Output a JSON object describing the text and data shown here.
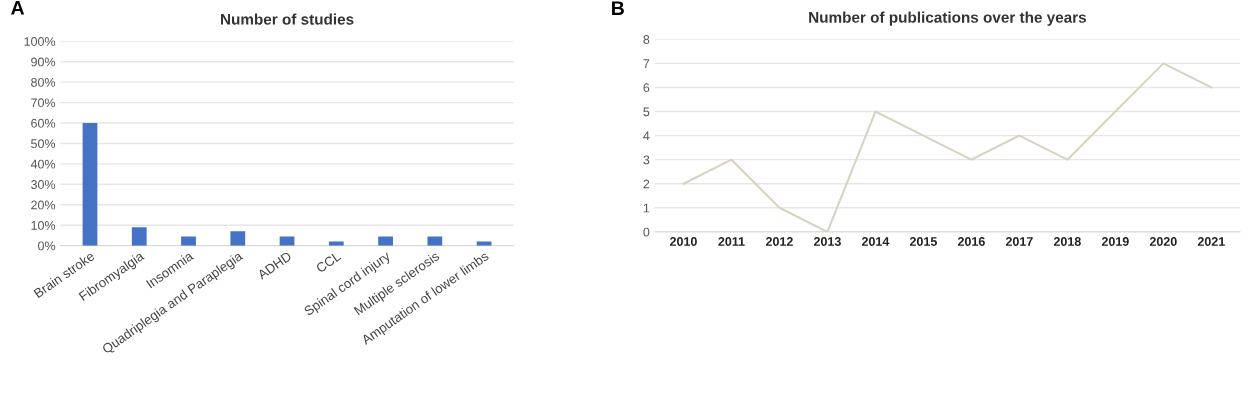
{
  "chart_data": [
    {
      "type": "bar",
      "title": "Number of studies",
      "annotations": [
        "A"
      ],
      "categories": [
        "Brain stroke",
        "Fibromyalgia",
        "Insomnia",
        "Quadriplegia and Paraplegia",
        "ADHD",
        "CCL",
        "Spinal cord injury",
        "Multiple sclerosis",
        "Amputation of lower limbs"
      ],
      "values": [
        60,
        9,
        4.5,
        7,
        4.5,
        2,
        4.5,
        4.5,
        2
      ],
      "color": "#4472c4",
      "ylim": [
        0,
        100
      ],
      "yticks": [
        {
          "value": 0,
          "label": "0%"
        },
        {
          "value": 10,
          "label": "10%"
        },
        {
          "value": 20,
          "label": "20%"
        },
        {
          "value": 30,
          "label": "30%"
        },
        {
          "value": 40,
          "label": "40%"
        },
        {
          "value": 50,
          "label": "50%"
        },
        {
          "value": 60,
          "label": "60%"
        },
        {
          "value": 70,
          "label": "70%"
        },
        {
          "value": 80,
          "label": "80%"
        },
        {
          "value": 90,
          "label": "90%"
        },
        {
          "value": 100,
          "label": "100%"
        }
      ],
      "grid": "y"
    },
    {
      "type": "line",
      "title": "Number of publications over the years",
      "annotations": [
        "B"
      ],
      "categories": [
        "2010",
        "2011",
        "2012",
        "2013",
        "2014",
        "2015",
        "2016",
        "2017",
        "2018",
        "2019",
        "2020",
        "2021"
      ],
      "values": [
        2,
        3,
        1,
        0,
        5,
        4,
        3,
        4,
        3,
        5,
        7,
        6
      ],
      "color": "#d9d2c0",
      "ylim": [
        0,
        8
      ],
      "yticks": [
        0,
        1,
        2,
        3,
        4,
        5,
        6,
        7,
        8
      ],
      "grid": "y",
      "marker": "none"
    }
  ]
}
